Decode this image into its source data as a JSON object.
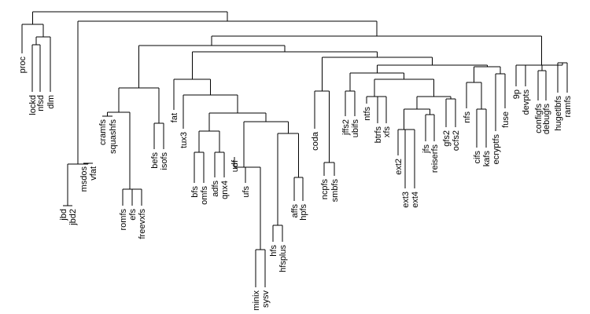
{
  "diagram": {
    "type": "dendrogram",
    "line_color": "#000000",
    "background_color": "#ffffff",
    "leaves": [
      "proc",
      "lockd",
      "nfsd",
      "dlm",
      "jbd",
      "jbd2",
      "msdos",
      "vfat",
      "romfs",
      "efs",
      "freevxfs",
      "cramfs",
      "squashfs",
      "befs",
      "isofs",
      "fat",
      "tux3",
      "bfs",
      "omfs",
      "adfs",
      "qnx4",
      "udf",
      "ufs",
      "minix",
      "sysv",
      "hfs",
      "hfsplus",
      "affs",
      "hpfs",
      "coda",
      "ncpfs",
      "smbfs",
      "jffs2",
      "ubifs",
      "ntfs",
      "btrfs",
      "xfs",
      "ext2",
      "ext3",
      "ext4",
      "jfs",
      "reiserfs",
      "gfs2",
      "ocfs2",
      "nfs",
      "cifs",
      "kafs",
      "ecryptfs",
      "fuse",
      "9p",
      "devpts",
      "configfs",
      "debugfs",
      "hugetlbfs",
      "ramfs"
    ]
  }
}
